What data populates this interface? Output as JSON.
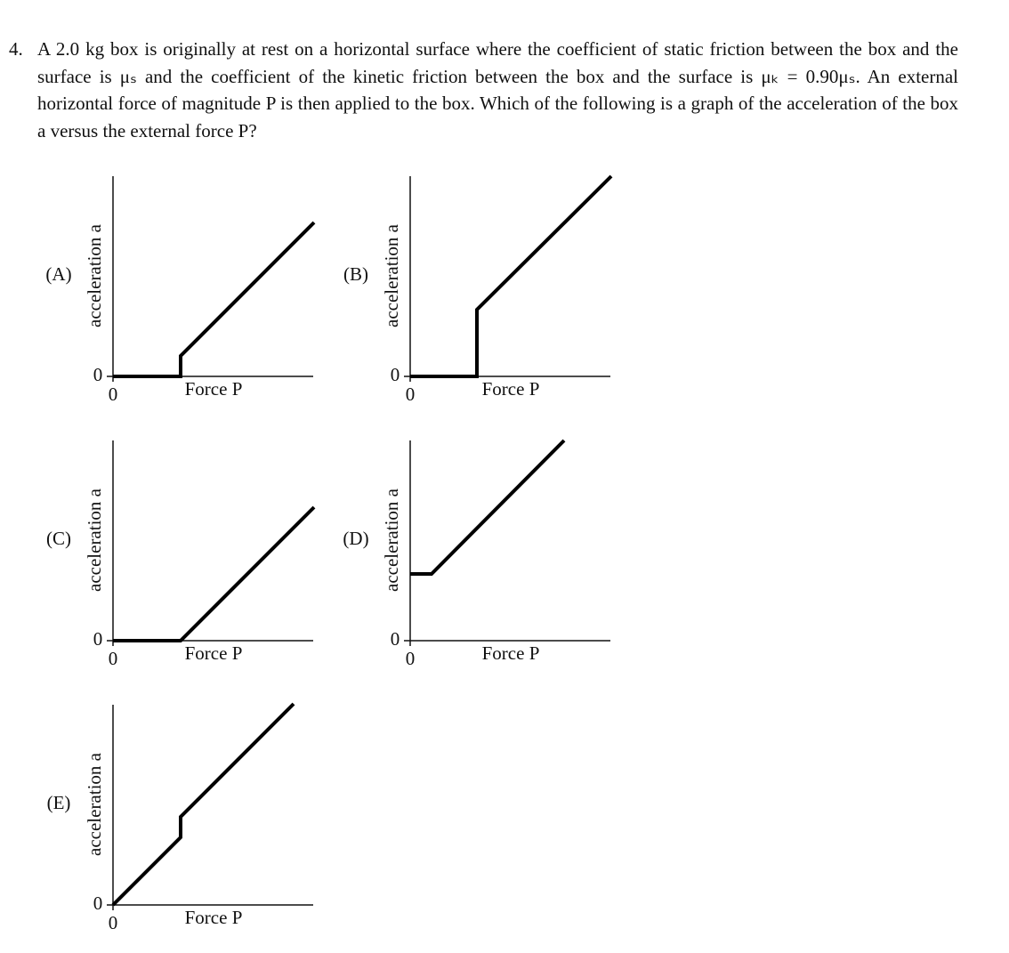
{
  "question": {
    "number": "4.",
    "text": "A 2.0 kg box is originally at rest on a horizontal surface where the coefficient of static friction between the box and the surface is μₛ and the coefficient of the kinetic friction between the box and the surface is μₖ = 0.90μₛ. An external horizontal force of magnitude P is then applied to the box. Which of the following is a graph of the acceleration of the box a versus the external force P?"
  },
  "options": [
    {
      "label": "(A)",
      "y_axis_label": "acceleration a",
      "x_axis_label": "Force P",
      "y_origin_label": "0",
      "x_origin_label": "0"
    },
    {
      "label": "(B)",
      "y_axis_label": "acceleration a",
      "x_axis_label": "Force P",
      "y_origin_label": "0",
      "x_origin_label": "0"
    },
    {
      "label": "(C)",
      "y_axis_label": "acceleration a",
      "x_axis_label": "Force P",
      "y_origin_label": "0",
      "x_origin_label": "0"
    },
    {
      "label": "(D)",
      "y_axis_label": "acceleration a",
      "x_axis_label": "Force P",
      "y_origin_label": "0",
      "x_origin_label": "0"
    },
    {
      "label": "(E)",
      "y_axis_label": "acceleration a",
      "x_axis_label": "Force P",
      "y_origin_label": "0",
      "x_origin_label": "0"
    }
  ]
}
